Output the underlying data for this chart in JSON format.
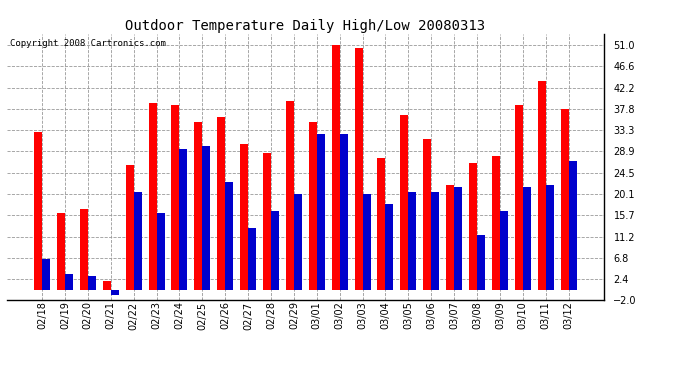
{
  "title": "Outdoor Temperature Daily High/Low 20080313",
  "copyright": "Copyright 2008 Cartronics.com",
  "categories": [
    "02/18",
    "02/19",
    "02/20",
    "02/21",
    "02/22",
    "02/23",
    "02/24",
    "02/25",
    "02/26",
    "02/27",
    "02/28",
    "02/29",
    "03/01",
    "03/02",
    "03/03",
    "03/04",
    "03/05",
    "03/06",
    "03/07",
    "03/08",
    "03/09",
    "03/10",
    "03/11",
    "03/12"
  ],
  "highs": [
    33.0,
    16.0,
    17.0,
    2.0,
    26.0,
    39.0,
    38.5,
    35.0,
    36.0,
    30.5,
    28.5,
    39.5,
    35.0,
    51.0,
    50.5,
    27.5,
    36.5,
    31.5,
    22.0,
    26.5,
    28.0,
    38.5,
    43.5,
    37.8
  ],
  "lows": [
    6.5,
    3.5,
    3.0,
    -1.0,
    20.5,
    16.0,
    29.5,
    30.0,
    22.5,
    13.0,
    16.5,
    20.0,
    32.5,
    32.5,
    20.0,
    18.0,
    20.5,
    20.5,
    21.5,
    11.5,
    16.5,
    21.5,
    22.0,
    27.0
  ],
  "high_color": "#ff0000",
  "low_color": "#0000cc",
  "bg_color": "#ffffff",
  "grid_color": "#999999",
  "ymin": -2.0,
  "ymax": 53.4,
  "yticks": [
    -2.0,
    2.4,
    6.8,
    11.2,
    15.7,
    20.1,
    24.5,
    28.9,
    33.3,
    37.8,
    42.2,
    46.6,
    51.0
  ],
  "bar_width": 0.35,
  "title_fontsize": 10,
  "tick_fontsize": 7,
  "copyright_fontsize": 6.5
}
